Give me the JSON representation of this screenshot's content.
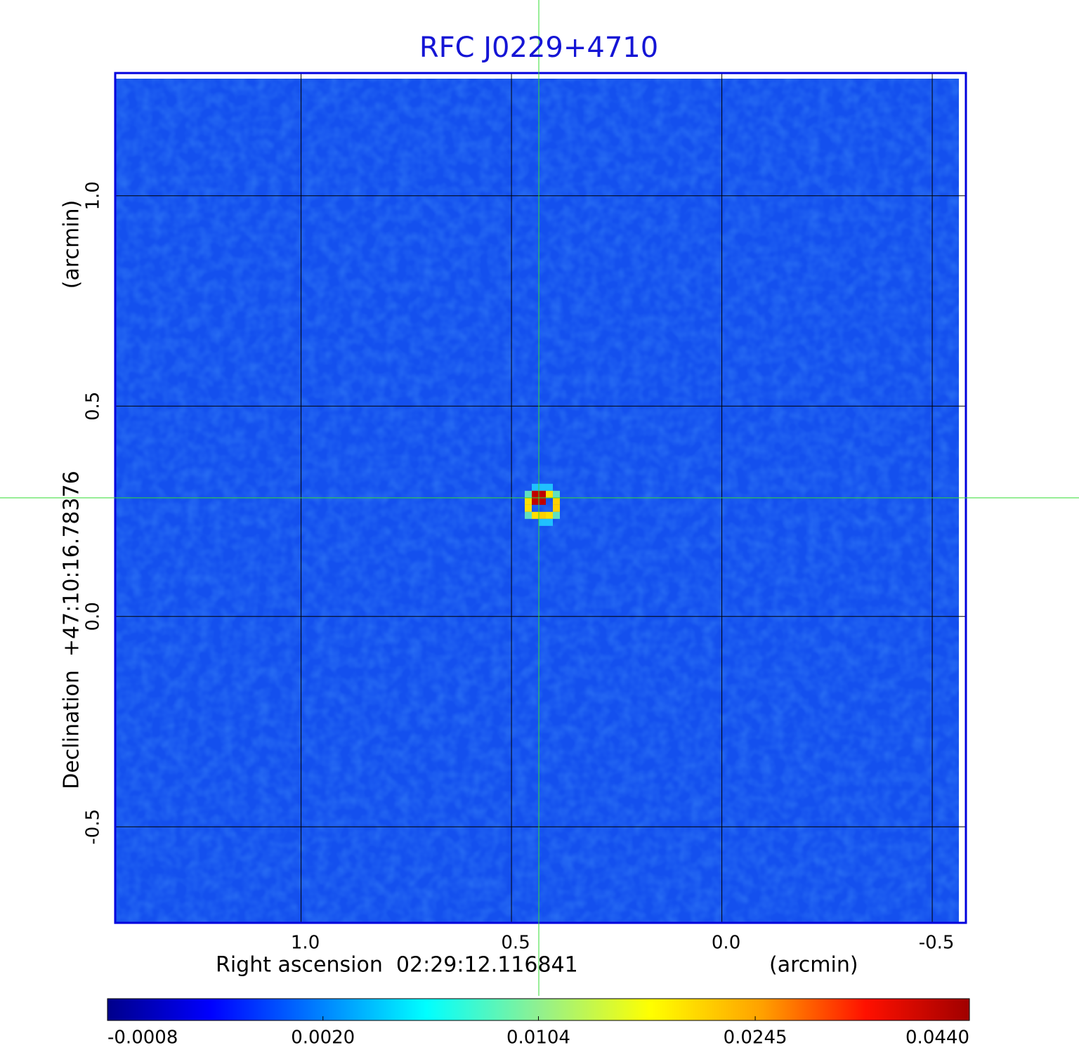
{
  "chart_data": {
    "type": "image",
    "title": "RFC J0229+4710",
    "xlabel": "Right ascension  02:29:12.116841",
    "xunit": "(arcmin)",
    "ylabel": "Declination  +47:10:16.78376",
    "yunit": "(arcmin)",
    "xlim": [
      1.4417,
      -0.58
    ],
    "ylim": [
      -0.7283,
      1.2917
    ],
    "xticks": [
      {
        "value": 1,
        "label": "1.0"
      },
      {
        "value": 0.5,
        "label": "0.5"
      },
      {
        "value": 0,
        "label": "0.0"
      },
      {
        "value": -0.5,
        "label": "-0.5"
      }
    ],
    "yticks": [
      {
        "value": 1,
        "label": "1.0"
      },
      {
        "value": 0.5,
        "label": "0.5"
      },
      {
        "value": 0,
        "label": "0.0"
      },
      {
        "value": -0.5,
        "label": "-0.5"
      }
    ],
    "grid": true,
    "source": {
      "x": 0.435,
      "y": 0.282,
      "value": 0.044
    },
    "colormap": "jet",
    "colorbar_scale": "sqrt",
    "clim": [
      -0.0008,
      0.044
    ],
    "colorbar_ticks": [
      -0.0008,
      {
        "value": 0.002,
        "label": "0.0020"
      },
      0.0104,
      0.0245,
      {
        "value": 0.044,
        "label": "0.0440"
      }
    ]
  }
}
